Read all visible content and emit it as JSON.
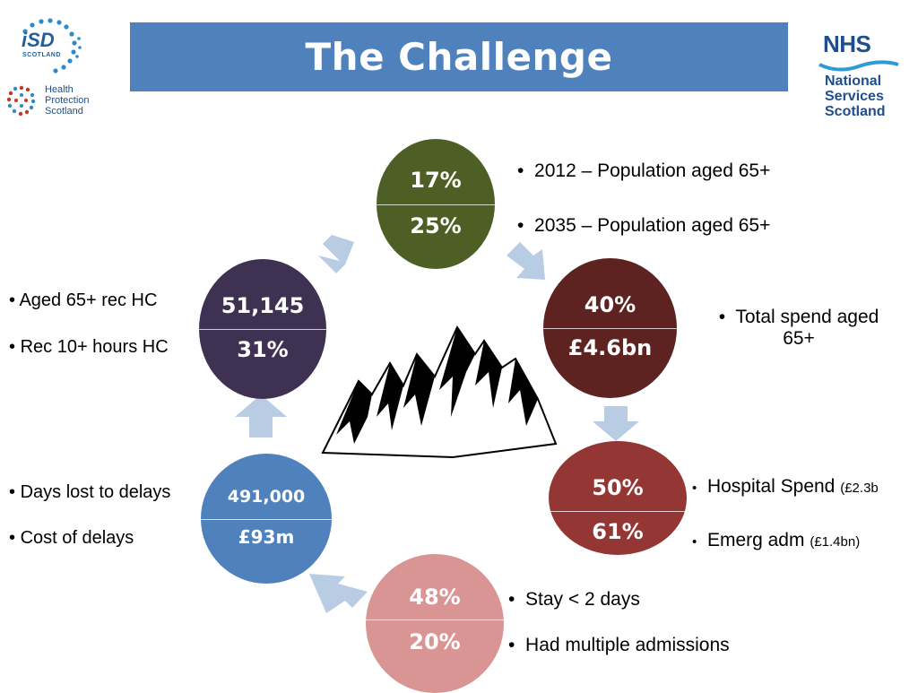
{
  "title": "The Challenge",
  "colors": {
    "title_bg": "#4f81bd",
    "green": "#4e5f26",
    "maroon": "#5e2321",
    "red": "#943634",
    "pink": "#d99594",
    "navy_blue": "#4f81bd",
    "purple": "#3f3151",
    "arrow": "#b8cce4"
  },
  "logos": {
    "isd": {
      "main": "iSD",
      "sub": "SCOTLAND"
    },
    "hps": {
      "line1": "Health",
      "line2": "Protection",
      "line3": "Scotland"
    },
    "nhs": {
      "badge": "NHS",
      "line1": "National",
      "line2": "Services",
      "line3": "Scotland"
    }
  },
  "circles": [
    {
      "id": "population",
      "top": "17%",
      "bottom": "25%"
    },
    {
      "id": "spend",
      "top": "40%",
      "bottom": "£4.6bn"
    },
    {
      "id": "hospital",
      "top": "50%",
      "bottom": "61%"
    },
    {
      "id": "stay",
      "top": "48%",
      "bottom": "20%"
    },
    {
      "id": "delays",
      "top": "491,000",
      "bottom": "£93m"
    },
    {
      "id": "homecare",
      "top": "51,145",
      "bottom": "31%"
    }
  ],
  "bullets": {
    "population_1": "2012 – Population aged 65+",
    "population_2": "2035 – Population aged 65+",
    "spend_line1": "Total spend aged",
    "spend_line2": "65+",
    "hospital_1": "Hospital Spend",
    "hospital_1_note": "(£2.3b",
    "hospital_2": "Emerg adm",
    "hospital_2_note": "(£1.4bn)",
    "stay_1": "Stay < 2 days",
    "stay_2": "Had multiple admissions",
    "delays_1": "Days lost to delays",
    "delays_2": "Cost of delays",
    "homecare_1": "Aged 65+ rec HC",
    "homecare_2": "Rec 10+ hours HC"
  },
  "bullet_char": "•"
}
